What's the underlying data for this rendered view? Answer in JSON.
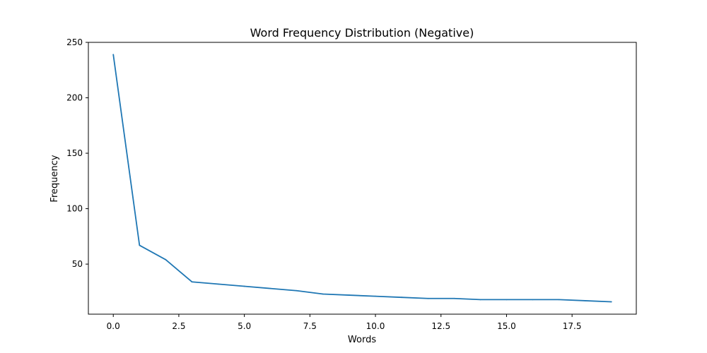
{
  "chart_data": {
    "type": "line",
    "title": "Word Frequency Distribution (Negative)",
    "xlabel": "Words",
    "ylabel": "Frequency",
    "x": [
      0,
      1,
      2,
      3,
      4,
      5,
      6,
      7,
      8,
      9,
      10,
      11,
      12,
      13,
      14,
      15,
      16,
      17,
      18,
      19
    ],
    "series": [
      {
        "values": [
          239,
          67,
          54,
          34,
          32,
          30,
          28,
          26,
          23,
          22,
          21,
          20,
          19,
          19,
          18,
          18,
          18,
          18,
          17,
          16
        ]
      }
    ],
    "xlim": [
      -0.95,
      19.95
    ],
    "ylim": [
      4.85,
      250
    ],
    "x_ticks": [
      "0.0",
      "2.5",
      "5.0",
      "7.5",
      "10.0",
      "12.5",
      "15.0",
      "17.5"
    ],
    "y_ticks": [
      "50",
      "100",
      "150",
      "200",
      "250"
    ],
    "grid": false,
    "line_color": "#1f77b4"
  }
}
